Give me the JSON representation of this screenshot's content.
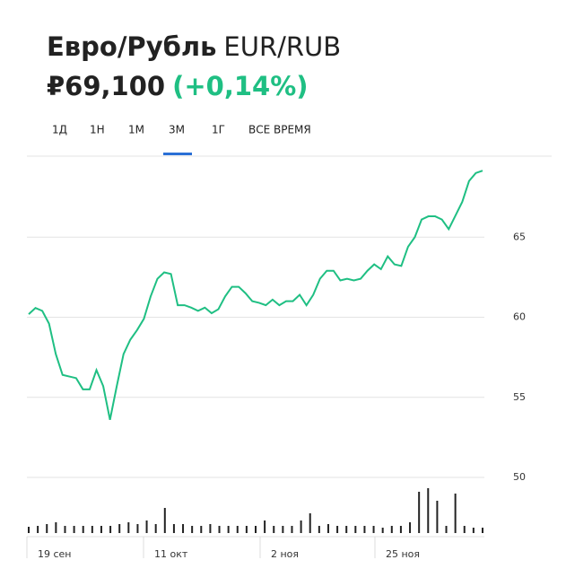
{
  "chart_data": {
    "type": "line",
    "title": "Евро/Рубль",
    "ticker": "EUR/RUB",
    "price": "₽69,100",
    "change": "(+0,14%)",
    "tabs": [
      "1Д",
      "1Н",
      "1М",
      "3М",
      "1Г",
      "ВСЕ ВРЕМЯ"
    ],
    "selected_tab": "3М",
    "color": "#1fbf83",
    "ylim": [
      50,
      70
    ],
    "yticks": [
      50,
      55,
      60,
      65
    ],
    "grid": true,
    "x_labels": [
      "19 сен",
      "11 окт",
      "2 ноя",
      "25 ноя"
    ],
    "values": [
      60.19,
      60.58,
      60.4,
      59.6,
      57.7,
      56.4,
      56.3,
      56.2,
      55.5,
      55.5,
      56.7,
      55.7,
      53.6,
      55.7,
      57.7,
      58.6,
      59.2,
      59.9,
      61.3,
      62.4,
      62.8,
      62.7,
      60.75,
      60.75,
      60.6,
      60.4,
      60.6,
      60.25,
      60.5,
      61.3,
      61.9,
      61.9,
      61.5,
      61.0,
      60.9,
      60.75,
      61.1,
      60.75,
      61.0,
      61.0,
      61.4,
      60.75,
      61.4,
      62.4,
      62.9,
      62.9,
      62.3,
      62.4,
      62.3,
      62.4,
      62.9,
      63.3,
      63.0,
      63.8,
      63.3,
      63.2,
      64.4,
      65.0,
      66.1,
      66.3,
      66.3,
      66.1,
      65.5,
      66.35,
      67.2,
      68.5,
      69.0,
      69.15
    ],
    "volume": {
      "color": "#222222",
      "ylim": [
        0,
        60
      ],
      "values": [
        7,
        8,
        10,
        12,
        8,
        8,
        8,
        8,
        8,
        8,
        10,
        12,
        10,
        14,
        10,
        28,
        10,
        10,
        8,
        8,
        10,
        8,
        8,
        8,
        8,
        8,
        14,
        8,
        8,
        8,
        14,
        22,
        8,
        10,
        8,
        8,
        8,
        8,
        8,
        6,
        8,
        8,
        12,
        46,
        50,
        36,
        8,
        44,
        8,
        6,
        6
      ]
    }
  }
}
